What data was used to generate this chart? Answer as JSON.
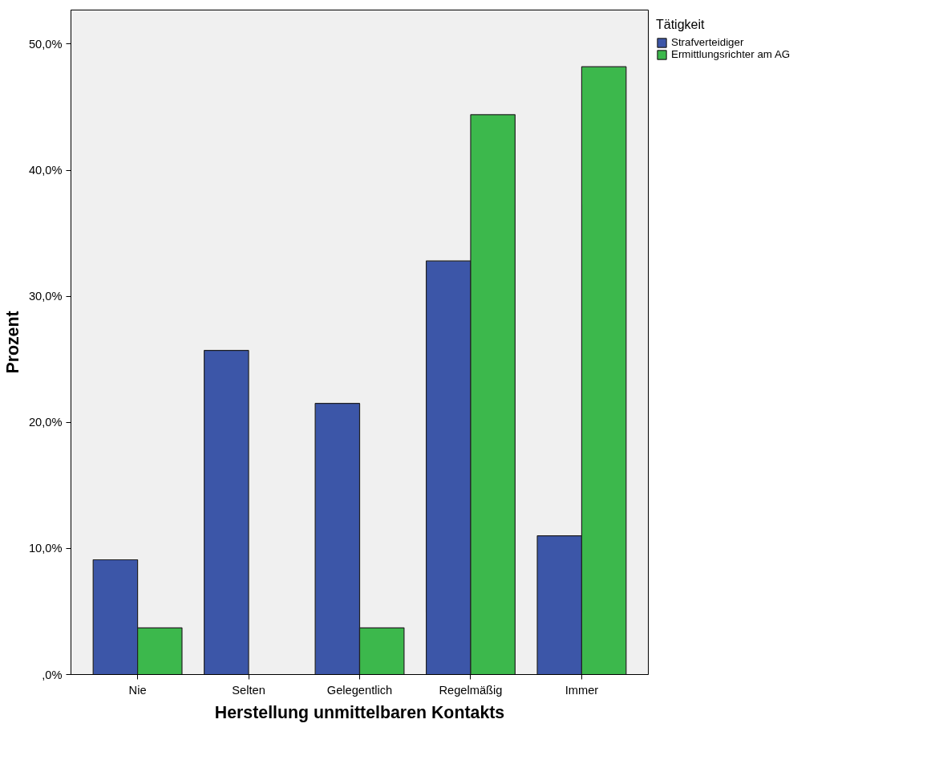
{
  "chart_data": {
    "type": "bar",
    "xlabel": "Herstellung unmittelbaren Kontakts",
    "ylabel": "Prozent",
    "legend_title": "Tätigkeit",
    "legend": "top right",
    "grid": false,
    "categories": [
      "Nie",
      "Selten",
      "Gelegentlich",
      "Regelmäßig",
      "Immer"
    ],
    "series": [
      {
        "name": "Strafverteidiger",
        "color": "#3c56a8",
        "values": [
          9.1,
          25.7,
          21.5,
          32.8,
          11.0
        ]
      },
      {
        "name": "Ermittlungsrichter am AG",
        "color": "#3cb84c",
        "values": [
          3.7,
          null,
          3.7,
          44.4,
          48.2
        ]
      }
    ],
    "ylim": [
      0,
      52.7
    ],
    "yticks": [
      {
        "value": 0,
        "label": ",0%"
      },
      {
        "value": 10,
        "label": "10,0%"
      },
      {
        "value": 20,
        "label": "20,0%"
      },
      {
        "value": 30,
        "label": "30,0%"
      },
      {
        "value": 40,
        "label": "40,0%"
      },
      {
        "value": 50,
        "label": "50,0%"
      }
    ]
  }
}
